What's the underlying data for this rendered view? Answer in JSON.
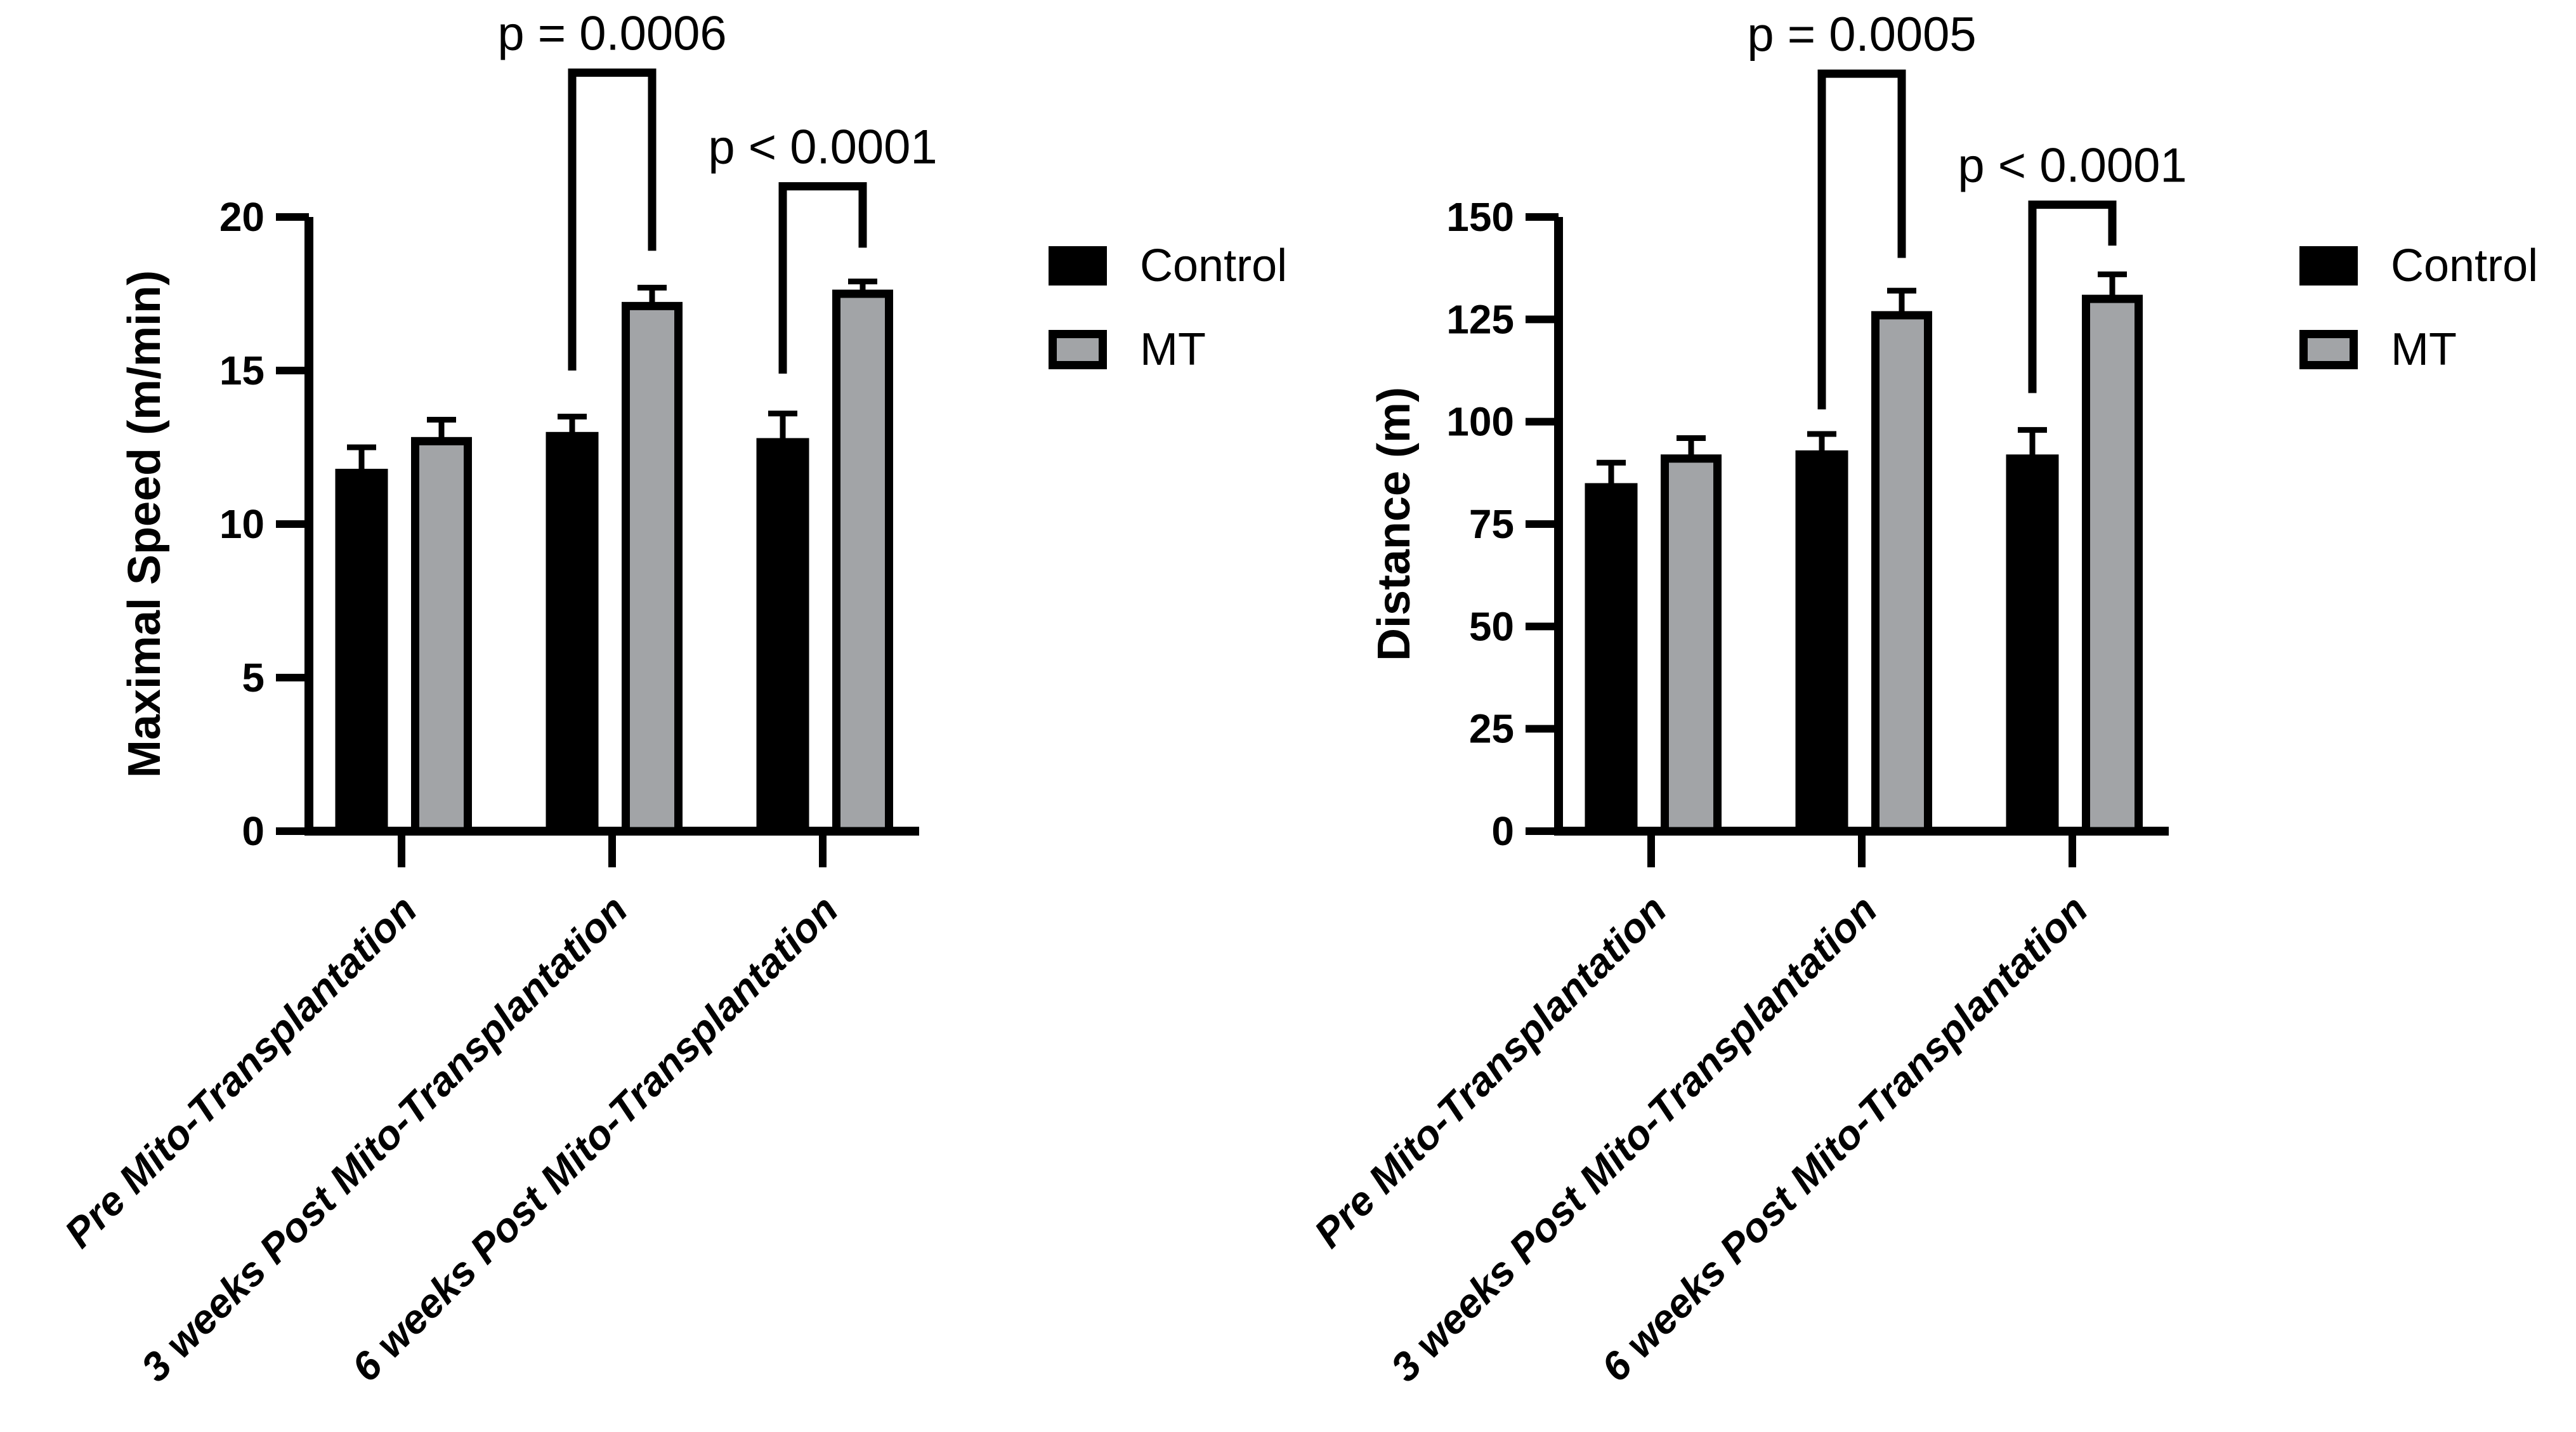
{
  "figure": {
    "background": "#ffffff",
    "bar_black": "#000000",
    "bar_gray": "#a2a4a7",
    "axis_color": "#000000"
  },
  "chart_data": [
    {
      "type": "bar",
      "title": "",
      "xlabel": "",
      "ylabel": "Maximal Speed (m/min)",
      "ylim": [
        0,
        20
      ],
      "yticks": [
        0,
        5,
        10,
        15,
        20
      ],
      "grid": false,
      "legend_position": "right",
      "error_bars": "upper-with-cap",
      "categories": [
        "Pre Mito-Transplantation",
        "3 weeks Post Mito-Transplantation",
        "6 weeks Post Mito-Transplantation"
      ],
      "series": [
        {
          "name": "Control",
          "color": "#000000",
          "values": [
            11.8,
            13.0,
            12.8
          ],
          "errors": [
            0.7,
            0.5,
            0.8
          ]
        },
        {
          "name": "MT",
          "color": "#a2a4a7",
          "values": [
            12.7,
            17.1,
            17.5
          ],
          "errors": [
            0.7,
            0.6,
            0.4
          ]
        }
      ],
      "annotations": [
        {
          "label": "p = 0.0006",
          "group_index": 1,
          "top": 24.7,
          "left_leg_bottom": 15.0,
          "right_leg_bottom": 18.9
        },
        {
          "label": "p < 0.0001",
          "group_index": 2,
          "top": 21.0,
          "left_leg_bottom": 14.9,
          "right_leg_bottom": 19.0
        }
      ],
      "legend": [
        "Control",
        "MT"
      ]
    },
    {
      "type": "bar",
      "title": "",
      "xlabel": "",
      "ylabel": "Distance (m)",
      "ylim": [
        0,
        150
      ],
      "yticks": [
        0,
        25,
        50,
        75,
        100,
        125,
        150
      ],
      "grid": false,
      "legend_position": "right",
      "error_bars": "upper-with-cap",
      "categories": [
        "Pre Mito-Transplantation",
        "3 weeks Post Mito-Transplantation",
        "6 weeks Post Mito-Transplantation"
      ],
      "series": [
        {
          "name": "Control",
          "color": "#000000",
          "values": [
            85,
            93,
            92
          ],
          "errors": [
            5,
            4,
            6
          ]
        },
        {
          "name": "MT",
          "color": "#a2a4a7",
          "values": [
            91,
            126,
            130
          ],
          "errors": [
            5,
            6,
            6
          ]
        }
      ],
      "annotations": [
        {
          "label": "p = 0.0005",
          "group_index": 1,
          "top": 185,
          "left_leg_bottom": 103,
          "right_leg_bottom": 140
        },
        {
          "label": "p < 0.0001",
          "group_index": 2,
          "top": 153,
          "left_leg_bottom": 107,
          "right_leg_bottom": 143
        }
      ],
      "legend": [
        "Control",
        "MT"
      ]
    }
  ]
}
